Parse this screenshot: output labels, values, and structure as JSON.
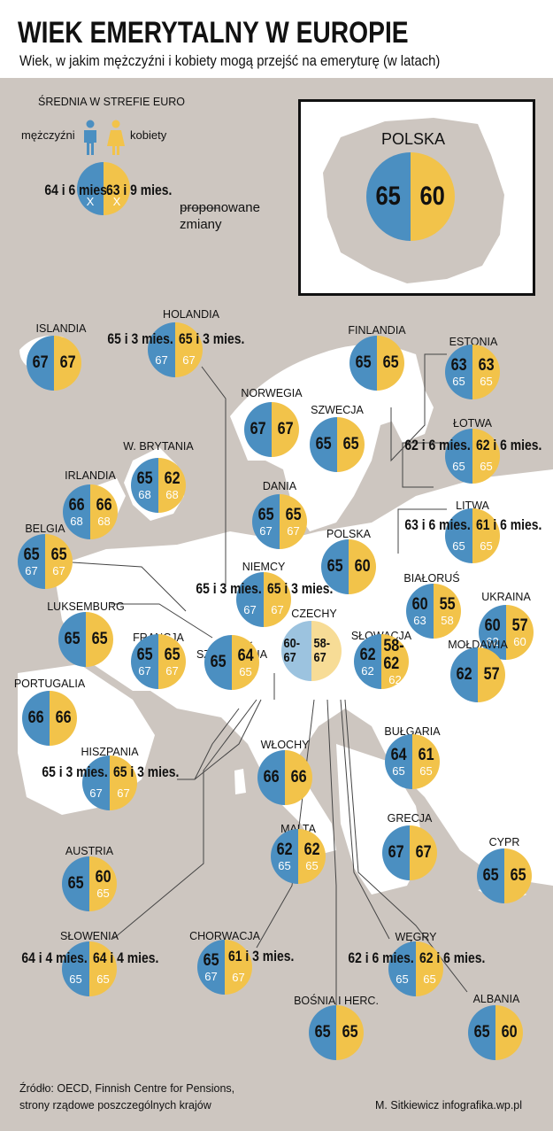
{
  "header": {
    "title": "WIEK EMERYTALNY W EUROPIE",
    "subtitle": "Wiek, w jakim mężczyźni i kobiety mogą przejść na emeryturę (w latach)"
  },
  "legend": {
    "heading": "ŚREDNIA W STREFIE EURO",
    "men_label": "mężczyźni",
    "women_label": "kobiety",
    "men_value": "64 i 6 mies.",
    "women_value": "63 i 9 mies.",
    "men_proposed": "X",
    "women_proposed": "X",
    "proposed_line1": "proponowane",
    "proposed_line2": "zmiany"
  },
  "poland_box": {
    "label": "POLSKA",
    "men": "65",
    "women": "60"
  },
  "colors": {
    "map_bg": "#cdc6c0",
    "men": "#4b8fc1",
    "women": "#f2c34a",
    "men_light": "#9cc3df",
    "women_light": "#f7dc96"
  },
  "countries": [
    {
      "name": "ISLANDIA",
      "men": "67",
      "women": "67"
    },
    {
      "name": "HOLANDIA",
      "men": "65 i 3 mies.",
      "women": "65 i 3 mies.",
      "men_new": "67",
      "women_new": "67"
    },
    {
      "name": "FINLANDIA",
      "men": "65",
      "women": "65"
    },
    {
      "name": "ESTONIA",
      "men": "63",
      "women": "63",
      "men_new": "65",
      "women_new": "65"
    },
    {
      "name": "NORWEGIA",
      "men": "67",
      "women": "67"
    },
    {
      "name": "SZWECJA",
      "men": "65",
      "women": "65"
    },
    {
      "name": "ŁOTWA",
      "men": "62 i 6 mies.",
      "women": "62 i 6 mies.",
      "men_new": "65",
      "women_new": "65"
    },
    {
      "name": "W. BRYTANIA",
      "men": "65",
      "women": "62",
      "men_new": "68",
      "women_new": "68"
    },
    {
      "name": "IRLANDIA",
      "men": "66",
      "women": "66",
      "men_new": "68",
      "women_new": "68"
    },
    {
      "name": "DANIA",
      "men": "65",
      "women": "65",
      "men_new": "67",
      "women_new": "67"
    },
    {
      "name": "LITWA",
      "men": "63 i 6 mies.",
      "women": "61 i 6 mies.",
      "men_new": "65",
      "women_new": "65"
    },
    {
      "name": "BELGIA",
      "men": "65",
      "women": "65",
      "men_new": "67",
      "women_new": "67"
    },
    {
      "name": "POLSKA",
      "men": "65",
      "women": "60"
    },
    {
      "name": "NIEMCY",
      "men": "65 i 3 mies.",
      "women": "65 i 3 mies.",
      "men_new": "67",
      "women_new": "67"
    },
    {
      "name": "BIAŁORUŚ",
      "men": "60",
      "women": "55",
      "men_new": "63",
      "women_new": "58"
    },
    {
      "name": "UKRAINA",
      "men": "60",
      "women": "57",
      "men_new": "62",
      "women_new": "60"
    },
    {
      "name": "LUKSEMBURG",
      "men": "65",
      "women": "65"
    },
    {
      "name": "CZECHY",
      "men": "60-67",
      "women": "58-67"
    },
    {
      "name": "SŁOWACJA",
      "men": "62",
      "women": "58-62",
      "men_new": "62",
      "women_new": "62"
    },
    {
      "name": "FRANCJA",
      "men": "65",
      "women": "65",
      "men_new": "67",
      "women_new": "67"
    },
    {
      "name": "SZWAJCARIA",
      "men": "65",
      "women": "64",
      "women_new": "65"
    },
    {
      "name": "MOŁDAWIA",
      "men": "62",
      "women": "57"
    },
    {
      "name": "PORTUGALIA",
      "men": "66",
      "women": "66"
    },
    {
      "name": "WŁOCHY",
      "men": "66",
      "women": "66"
    },
    {
      "name": "BUŁGARIA",
      "men": "64",
      "women": "61",
      "men_new": "65",
      "women_new": "65"
    },
    {
      "name": "HISZPANIA",
      "men": "65 i 3 mies.",
      "women": "65 i 3 mies.",
      "men_new": "67",
      "women_new": "67"
    },
    {
      "name": "MALTA",
      "men": "62",
      "women": "62",
      "men_new": "65",
      "women_new": "65"
    },
    {
      "name": "GRECJA",
      "men": "67",
      "women": "67"
    },
    {
      "name": "AUSTRIA",
      "men": "65",
      "women": "60",
      "women_new": "65"
    },
    {
      "name": "CYPR",
      "men": "65",
      "women": "65"
    },
    {
      "name": "SŁOWENIA",
      "men": "64 i 4 mies.",
      "women": "64 i 4 mies.",
      "men_new": "65",
      "women_new": "65"
    },
    {
      "name": "CHORWACJA",
      "men": "65",
      "women": "61 i 3 mies.",
      "men_new": "67",
      "women_new": "67"
    },
    {
      "name": "WĘGRY",
      "men": "62 i 6 mies.",
      "women": "62 i 6 mies.",
      "men_new": "65",
      "women_new": "65"
    },
    {
      "name": "BOŚNIA I HERC.",
      "men": "65",
      "women": "65"
    },
    {
      "name": "ALBANIA",
      "men": "65",
      "women": "60"
    }
  ],
  "footer": {
    "source_line1": "Źródło: OECD, Finnish Centre for Pensions,",
    "source_line2": "strony rządowe poszczególnych krajów",
    "credit": "M. Sitkiewicz infografika.wp.pl"
  }
}
